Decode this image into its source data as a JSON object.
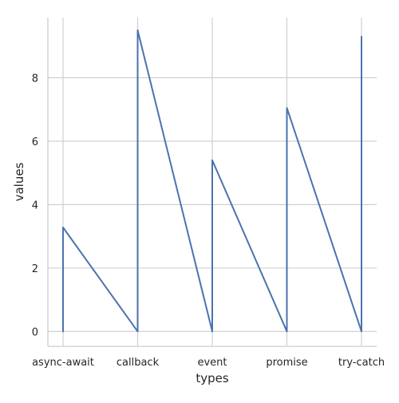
{
  "chart_data": {
    "type": "line",
    "xlabel": "types",
    "ylabel": "values",
    "categories": [
      "async-await",
      "callback",
      "event",
      "promise",
      "try-catch"
    ],
    "ylim": [
      -0.47,
      9.9
    ],
    "yticks": [
      0,
      2,
      4,
      6,
      8
    ],
    "grid": true,
    "series": [
      {
        "color": "#4c72b0",
        "points": [
          {
            "x": "async-await",
            "y": 0
          },
          {
            "x": "async-await",
            "y": 3.28
          },
          {
            "x": "callback",
            "y": 0
          },
          {
            "x": "callback",
            "y": 9.5
          },
          {
            "x": "event",
            "y": 0
          },
          {
            "x": "event",
            "y": 5.4
          },
          {
            "x": "promise",
            "y": 0
          },
          {
            "x": "promise",
            "y": 7.05
          },
          {
            "x": "try-catch",
            "y": 0
          },
          {
            "x": "try-catch",
            "y": 9.3
          }
        ]
      }
    ]
  }
}
